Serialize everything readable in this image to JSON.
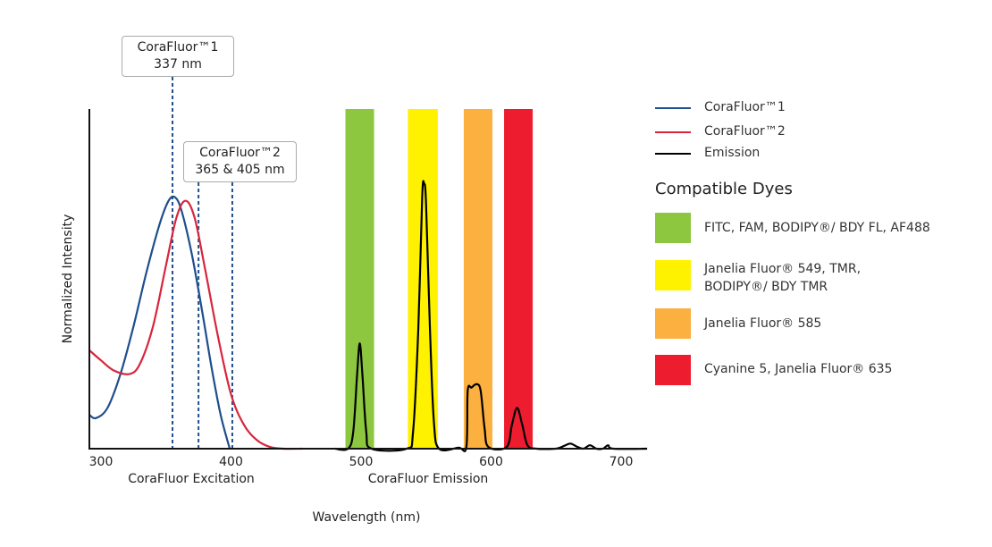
{
  "chart_data": {
    "type": "line",
    "xlabel": "Wavelength (nm)",
    "ylabel": "Normalized Intensity",
    "xlim": [
      291,
      720
    ],
    "ylim": [
      0,
      1
    ],
    "x_ticks": [
      300,
      400,
      500,
      600,
      700
    ],
    "x_tick_labels": [
      "300",
      "400",
      "500",
      "600",
      "700"
    ],
    "region_labels": [
      "CoraFluor Excitation",
      "CoraFluor Emission"
    ],
    "grid": false,
    "series": [
      {
        "name": "CoraFluor™1",
        "color": "#1f4e8c",
        "points": [
          [
            291,
            0.1
          ],
          [
            296,
            0.09
          ],
          [
            305,
            0.12
          ],
          [
            315,
            0.22
          ],
          [
            325,
            0.36
          ],
          [
            335,
            0.52
          ],
          [
            345,
            0.66
          ],
          [
            352,
            0.73
          ],
          [
            357,
            0.74
          ],
          [
            362,
            0.7
          ],
          [
            370,
            0.57
          ],
          [
            378,
            0.4
          ],
          [
            385,
            0.24
          ],
          [
            392,
            0.1
          ],
          [
            399,
            0.0
          ]
        ]
      },
      {
        "name": "CoraFluor™2",
        "color": "#d7263d",
        "points": [
          [
            291,
            0.29
          ],
          [
            300,
            0.26
          ],
          [
            310,
            0.23
          ],
          [
            322,
            0.22
          ],
          [
            330,
            0.25
          ],
          [
            340,
            0.36
          ],
          [
            350,
            0.54
          ],
          [
            358,
            0.68
          ],
          [
            365,
            0.73
          ],
          [
            372,
            0.68
          ],
          [
            380,
            0.53
          ],
          [
            390,
            0.33
          ],
          [
            400,
            0.16
          ],
          [
            410,
            0.07
          ],
          [
            420,
            0.025
          ],
          [
            430,
            0.005
          ],
          [
            440,
            0
          ],
          [
            455,
            0
          ]
        ]
      },
      {
        "name": "Emission",
        "color": "#000000",
        "points": [
          [
            480,
            0
          ],
          [
            490,
            0
          ],
          [
            494,
            0.05
          ],
          [
            497,
            0.22
          ],
          [
            499,
            0.31
          ],
          [
            501,
            0.22
          ],
          [
            504,
            0.05
          ],
          [
            508,
            0
          ],
          [
            535,
            0
          ],
          [
            540,
            0.05
          ],
          [
            544,
            0.35
          ],
          [
            547,
            0.74
          ],
          [
            548.5,
            0.78
          ],
          [
            550,
            0.72
          ],
          [
            553,
            0.35
          ],
          [
            556,
            0.08
          ],
          [
            560,
            0
          ],
          [
            575,
            0.003
          ],
          [
            581,
            0.005
          ],
          [
            582,
            0.17
          ],
          [
            585,
            0.18
          ],
          [
            589,
            0.19
          ],
          [
            592,
            0.17
          ],
          [
            595,
            0.06
          ],
          [
            598,
            0.005
          ],
          [
            612,
            0.005
          ],
          [
            616,
            0.07
          ],
          [
            620,
            0.12
          ],
          [
            624,
            0.07
          ],
          [
            628,
            0.01
          ],
          [
            635,
            0
          ],
          [
            650,
            0
          ],
          [
            656,
            0.008
          ],
          [
            661,
            0.015
          ],
          [
            666,
            0.006
          ],
          [
            671,
            0
          ],
          [
            676,
            0.01
          ],
          [
            681,
            0
          ],
          [
            686,
            0
          ],
          [
            690,
            0.01
          ],
          [
            694,
            0
          ],
          [
            720,
            0
          ]
        ]
      }
    ],
    "excitation_markers": [
      355,
      375,
      401
    ],
    "annotations": [
      {
        "line1": "CoraFluor™1",
        "line2": "337 nm"
      },
      {
        "line1": "CoraFluor™2",
        "line2": "365 & 405 nm"
      }
    ],
    "dye_bands": [
      {
        "range": [
          488,
          510
        ],
        "color": "#8dc63f",
        "label": "FITC, FAM, BODIPY®/ BDY FL, AF488"
      },
      {
        "range": [
          536,
          559
        ],
        "color": "#fff200",
        "label": "Janelia Fluor® 549, TMR, BODIPY®/ BDY TMR",
        "label_lines": [
          "Janelia Fluor® 549, TMR,",
          "BODIPY®/ BDY TMR"
        ]
      },
      {
        "range": [
          579,
          601
        ],
        "color": "#fbb040",
        "label": "Janelia Fluor® 585"
      },
      {
        "range": [
          610,
          632
        ],
        "color": "#ed1c2e",
        "label": "Cyanine 5, Janelia Fluor® 635"
      }
    ],
    "legend": {
      "placement": "right",
      "title": "Compatible Dyes"
    }
  }
}
